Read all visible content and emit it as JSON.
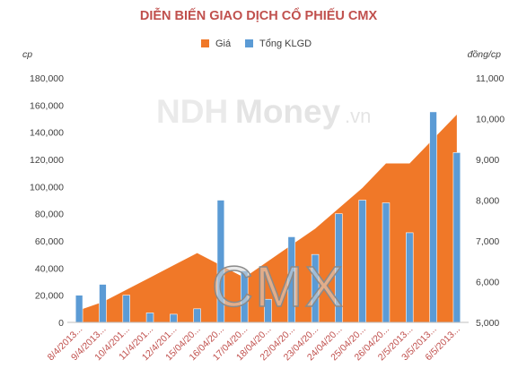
{
  "chart_data": {
    "type": "bar",
    "title": "DIỄN BIẾN GIAO DỊCH CỔ PHIẾU CMX",
    "y_left_label": "cp",
    "y_right_label": "đồng/cp",
    "ylim_left": [
      0,
      180000
    ],
    "ylim_right": [
      5000,
      11000
    ],
    "left_ticks": [
      "0",
      "20,000",
      "40,000",
      "60,000",
      "80,000",
      "100,000",
      "120,000",
      "140,000",
      "160,000",
      "180,000"
    ],
    "right_ticks": [
      "5,000",
      "6,000",
      "7,000",
      "8,000",
      "9,000",
      "10,000",
      "11,000"
    ],
    "categories": [
      "8/4/2013...",
      "9/4/2013...",
      "10/4/201...",
      "11/4/201...",
      "12/4/201...",
      "15/04/20...",
      "16/04/20...",
      "17/04/20...",
      "18/04/20...",
      "22/04/20...",
      "23/04/20...",
      "24/04/20...",
      "25/04/20...",
      "26/04/20...",
      "2/5/2013...",
      "3/5/2013...",
      "6/5/2013..."
    ],
    "series": [
      {
        "name": "Giá",
        "type": "area",
        "axis": "right",
        "color": "#f07828",
        "values": [
          5300,
          5500,
          5800,
          6100,
          6400,
          6700,
          6400,
          6100,
          6500,
          6900,
          7300,
          7800,
          8300,
          8900,
          8900,
          9500,
          10100
        ]
      },
      {
        "name": "Tổng KLGD",
        "type": "bar",
        "axis": "left",
        "color": "#5b9bd5",
        "values": [
          20000,
          28000,
          20000,
          7000,
          6000,
          10000,
          90000,
          38000,
          17000,
          63000,
          50000,
          80000,
          90000,
          88000,
          66000,
          155000,
          125000
        ]
      }
    ],
    "legend_position": "top",
    "grid": false
  },
  "watermark": {
    "brand_a": "NDH",
    "brand_b": "Money",
    "brand_c": ".vn",
    "overlay": "CMX"
  }
}
